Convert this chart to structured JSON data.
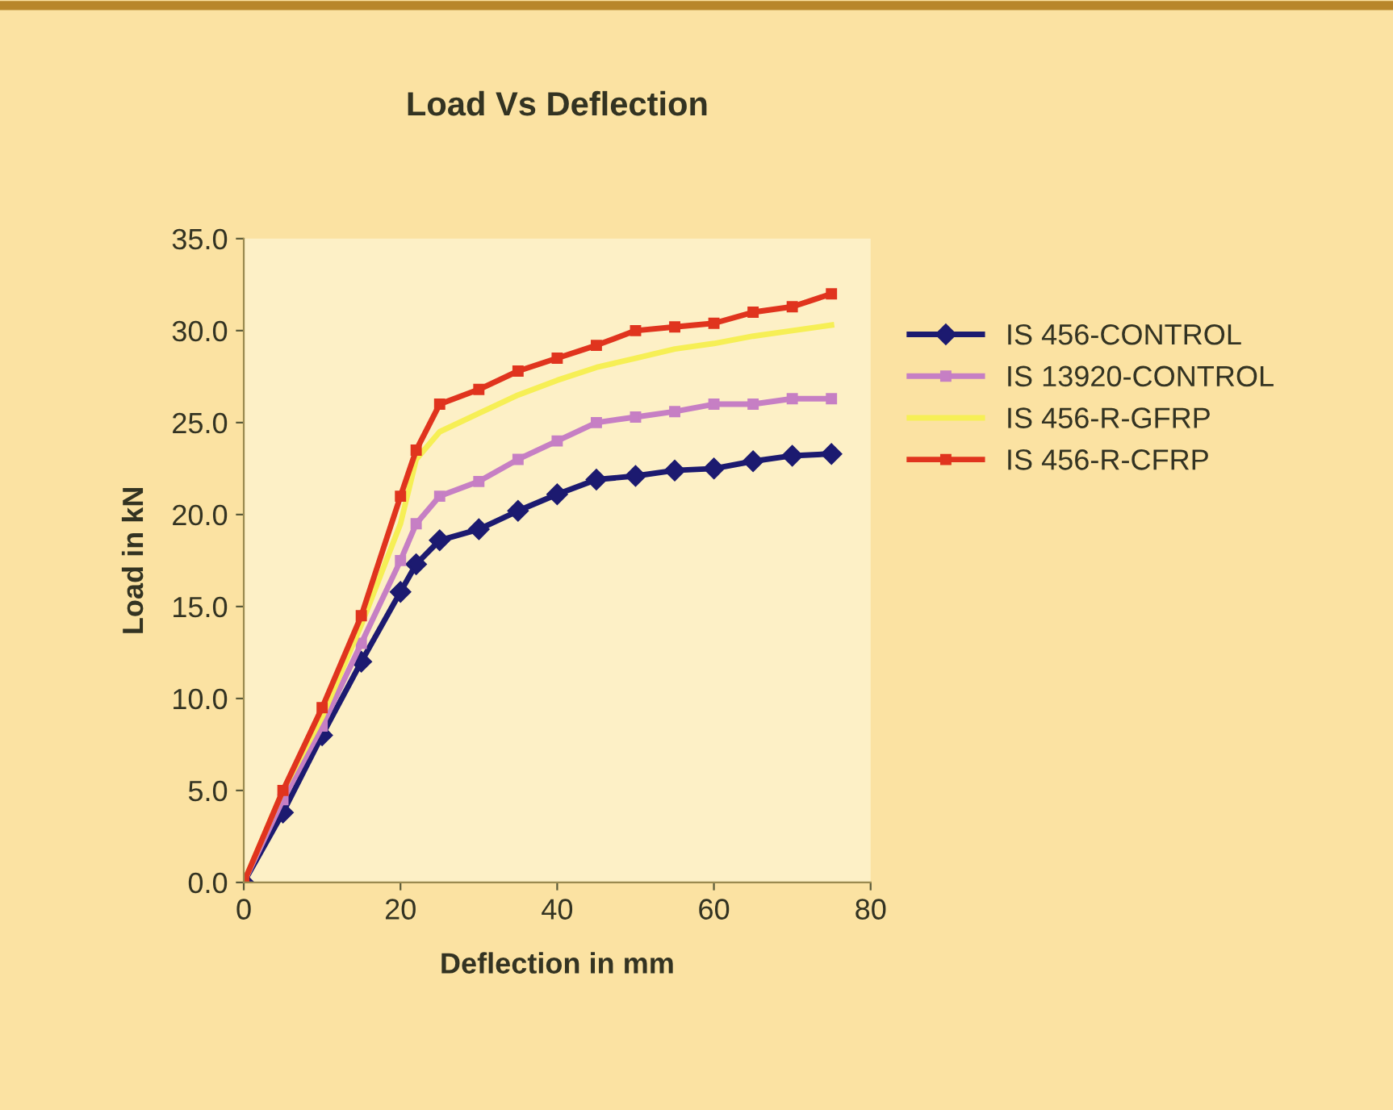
{
  "chart_data": {
    "type": "line",
    "title": "Load Vs Deflection",
    "xlabel": "Deflection in mm",
    "ylabel": "Load in kN",
    "x": [
      0,
      5,
      10,
      15,
      20,
      22,
      25,
      30,
      35,
      40,
      45,
      50,
      55,
      60,
      65,
      70,
      75
    ],
    "series": [
      {
        "name": "IS 456-CONTROL",
        "color": "#1c1a70",
        "marker": "diamond",
        "values": [
          0,
          3.8,
          8.0,
          12.0,
          15.8,
          17.3,
          18.6,
          19.2,
          20.2,
          21.1,
          21.9,
          22.1,
          22.4,
          22.5,
          22.9,
          23.2,
          23.3
        ]
      },
      {
        "name": "IS 13920-CONTROL",
        "color": "#c67fc4",
        "marker": "square",
        "values": [
          0,
          4.5,
          8.5,
          13.0,
          17.5,
          19.5,
          21.0,
          21.8,
          23.0,
          24.0,
          25.0,
          25.3,
          25.6,
          26.0,
          26.0,
          26.3,
          26.3
        ]
      },
      {
        "name": "IS 456-R-GFRP",
        "color": "#f6ef55",
        "marker": "none",
        "values": [
          0,
          5.0,
          9.0,
          14.0,
          19.5,
          23.0,
          24.5,
          25.5,
          26.5,
          27.3,
          28.0,
          28.5,
          29.0,
          29.3,
          29.7,
          30.0,
          30.3
        ]
      },
      {
        "name": "IS 456-R-CFRP",
        "color": "#e0341e",
        "marker": "square",
        "values": [
          0,
          5.0,
          9.5,
          14.5,
          21.0,
          23.5,
          26.0,
          26.8,
          27.8,
          28.5,
          29.2,
          30.0,
          30.2,
          30.4,
          31.0,
          31.3,
          32.0
        ]
      }
    ],
    "xlim": [
      0,
      80
    ],
    "xticks": [
      0,
      20,
      40,
      60,
      80
    ],
    "ylim": [
      0,
      35
    ],
    "yticks": [
      {
        "value": 0,
        "label": "0.0"
      },
      {
        "value": 5,
        "label": "5.0"
      },
      {
        "value": 10,
        "label": "10.0"
      },
      {
        "value": 15,
        "label": "15.0"
      },
      {
        "value": 20,
        "label": "20.0"
      },
      {
        "value": 25,
        "label": "25.0"
      },
      {
        "value": 30,
        "label": "30.0"
      },
      {
        "value": 35,
        "label": "35.0"
      }
    ],
    "grid": false,
    "legend": "right",
    "line_style": "solid"
  }
}
